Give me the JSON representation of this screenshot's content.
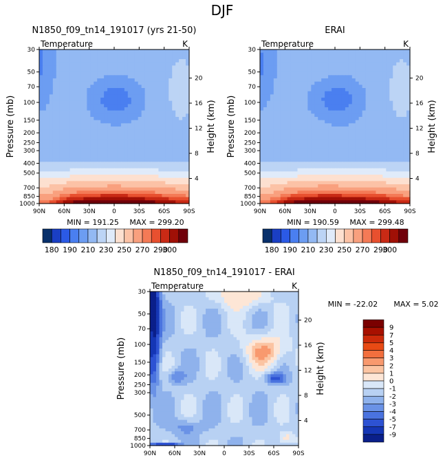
{
  "figure": {
    "title": "DJF"
  },
  "chart_data": [
    {
      "type": "heatmap",
      "title": "N1850_f09_tn14_191017 (yrs 21-50)",
      "variable": "Temperature",
      "units": "K",
      "xlabel": "",
      "ylabel": "Pressure (mb)",
      "y2label": "Height (km)",
      "x_ticks": [
        "90N",
        "60N",
        "30N",
        "0",
        "30S",
        "60S",
        "90S"
      ],
      "y_ticks": [
        "30",
        "50",
        "70",
        "100",
        "150",
        "200",
        "250",
        "300",
        "400",
        "500",
        "700",
        "850",
        "1000"
      ],
      "y2_ticks": [
        "20",
        "16",
        "12",
        "8",
        "4"
      ],
      "min_label": "MIN = 191.25",
      "max_label": "MAX = 299.20",
      "colorbar": {
        "tick_labels": [
          "180",
          "190",
          "210",
          "230",
          "250",
          "270",
          "290",
          "300"
        ]
      }
    },
    {
      "type": "heatmap",
      "title": "ERAI",
      "variable": "Temperature",
      "units": "K",
      "xlabel": "",
      "ylabel": "Pressure (mb)",
      "y2label": "Height (km)",
      "x_ticks": [
        "90N",
        "60N",
        "30N",
        "0",
        "30S",
        "60S",
        "90S"
      ],
      "y_ticks": [
        "30",
        "50",
        "70",
        "100",
        "150",
        "200",
        "250",
        "300",
        "400",
        "500",
        "700",
        "850",
        "1000"
      ],
      "y2_ticks": [
        "20",
        "16",
        "12",
        "8",
        "4"
      ],
      "min_label": "MIN = 190.59",
      "max_label": "MAX = 299.48",
      "colorbar": {
        "tick_labels": [
          "180",
          "190",
          "210",
          "230",
          "250",
          "270",
          "290",
          "300"
        ]
      }
    },
    {
      "type": "heatmap",
      "title": "N1850_f09_tn14_191017 - ERAI",
      "variable": "Temperature",
      "units": "K",
      "xlabel": "",
      "ylabel": "Pressure (mb)",
      "y2label": "Height (km)",
      "x_ticks": [
        "90N",
        "60N",
        "30N",
        "0",
        "30S",
        "60S",
        "90S"
      ],
      "y_ticks": [
        "30",
        "50",
        "70",
        "100",
        "150",
        "200",
        "250",
        "300",
        "500",
        "700",
        "850",
        "1000"
      ],
      "y2_ticks": [
        "20",
        "16",
        "12",
        "8",
        "4"
      ],
      "min_label": "MIN = -22.02",
      "max_label": "MAX =   5.02",
      "colorbar": {
        "tick_labels": [
          "9",
          "7",
          "5",
          "4",
          "3",
          "2",
          "1",
          "0",
          "-1",
          "-2",
          "-3",
          "-4",
          "-5",
          "-7",
          "-9"
        ]
      }
    }
  ],
  "palettes": {
    "temperature": [
      "#08306b",
      "#1a3fc4",
      "#2b5ae6",
      "#4a7ff0",
      "#6c9df2",
      "#93b9f3",
      "#bcd4f5",
      "#e0ebfa",
      "#fde0d0",
      "#fcc2a6",
      "#f9a07e",
      "#f47a56",
      "#e8502f",
      "#c92a15",
      "#a01006",
      "#70000a"
    ],
    "difference": [
      "#7a0000",
      "#a81000",
      "#cc2a0a",
      "#e84a14",
      "#f26f3e",
      "#f8996e",
      "#fbc4a2",
      "#fde6d6",
      "#d9e7f8",
      "#b8d1f3",
      "#8fb2ec",
      "#6a92e6",
      "#4a73df",
      "#2d52d3",
      "#1536b5",
      "#0a1f8a"
    ]
  }
}
